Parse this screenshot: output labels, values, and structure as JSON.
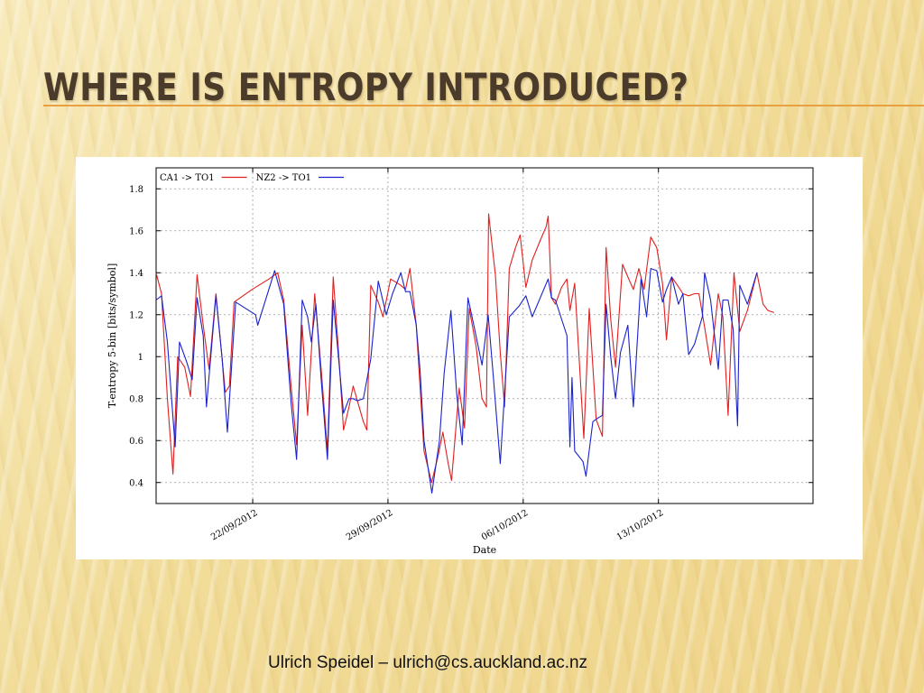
{
  "slide": {
    "title": "WHERE IS ENTROPY INTRODUCED?",
    "footer": "Ulrich Speidel – ulrich@cs.auckland.ac.nz",
    "title_color": "#4a3b2a",
    "accent_color": "#e8a040"
  },
  "chart_data": {
    "type": "line",
    "xlabel": "Date",
    "ylabel": "T-entropy 5-bin [bits/symbol]",
    "xlim": [
      "2012-09-17T00:00",
      "2012-10-21T00:00"
    ],
    "ylim": [
      0.3,
      1.9
    ],
    "yticks": [
      0.4,
      0.6,
      0.8,
      1,
      1.2,
      1.4,
      1.6,
      1.8
    ],
    "ytick_labels": [
      "0.4",
      "0.6",
      "0.8",
      "1",
      "1.2",
      "1.4",
      "1.6",
      "1.8"
    ],
    "xticks": [
      "2012-09-22",
      "2012-09-29",
      "2012-10-06",
      "2012-10-13"
    ],
    "xtick_labels": [
      "22/09/2012",
      "29/09/2012",
      "06/10/2012",
      "13/10/2012"
    ],
    "grid": true,
    "legend_position": "top-left",
    "series": [
      {
        "name": "CA1 -> TO1",
        "color": "#e02020",
        "points": [
          [
            "2012-09-17T00:00",
            1.4
          ],
          [
            "2012-09-17T06:45",
            1.3
          ],
          [
            "2012-09-17T14:00",
            0.8
          ],
          [
            "2012-09-17T21:00",
            0.44
          ],
          [
            "2012-09-18T02:50",
            1.0
          ],
          [
            "2012-09-18T11:30",
            0.95
          ],
          [
            "2012-09-18T18:40",
            0.81
          ],
          [
            "2012-09-19T02:50",
            1.39
          ],
          [
            "2012-09-19T10:30",
            1.15
          ],
          [
            "2012-09-19T17:50",
            0.94
          ],
          [
            "2012-09-20T02:20",
            1.3
          ],
          [
            "2012-09-20T14:00",
            0.83
          ],
          [
            "2012-09-20T19:00",
            0.86
          ],
          [
            "2012-09-21T00:50",
            1.26
          ],
          [
            "2012-09-21T23:10",
            1.32
          ],
          [
            "2012-09-22T20:10",
            1.37
          ],
          [
            "2012-09-23T07:00",
            1.4
          ],
          [
            "2012-09-23T14:30",
            1.27
          ],
          [
            "2012-09-23T23:40",
            0.86
          ],
          [
            "2012-09-24T06:30",
            0.58
          ],
          [
            "2012-09-24T13:30",
            1.15
          ],
          [
            "2012-09-24T20:10",
            0.72
          ],
          [
            "2012-09-25T05:00",
            1.3
          ],
          [
            "2012-09-25T13:30",
            0.92
          ],
          [
            "2012-09-25T20:50",
            0.55
          ],
          [
            "2012-09-26T04:00",
            1.38
          ],
          [
            "2012-09-26T11:10",
            0.99
          ],
          [
            "2012-09-26T16:50",
            0.65
          ],
          [
            "2012-09-26T23:40",
            0.76
          ],
          [
            "2012-09-27T04:50",
            0.86
          ],
          [
            "2012-09-27T09:20",
            0.8
          ],
          [
            "2012-09-27T17:30",
            0.69
          ],
          [
            "2012-09-27T21:50",
            0.65
          ],
          [
            "2012-09-28T02:40",
            1.34
          ],
          [
            "2012-09-28T12:00",
            1.26
          ],
          [
            "2012-09-28T17:50",
            1.19
          ],
          [
            "2012-09-29T03:20",
            1.37
          ],
          [
            "2012-09-29T16:00",
            1.34
          ],
          [
            "2012-09-29T21:50",
            1.32
          ],
          [
            "2012-09-30T03:20",
            1.42
          ],
          [
            "2012-09-30T11:10",
            1.15
          ],
          [
            "2012-09-30T20:50",
            0.55
          ],
          [
            "2012-10-01T06:10",
            0.4
          ],
          [
            "2012-10-01T14:30",
            0.53
          ],
          [
            "2012-10-01T20:10",
            0.64
          ],
          [
            "2012-10-02T02:20",
            0.5
          ],
          [
            "2012-10-02T07:00",
            0.41
          ],
          [
            "2012-10-02T16:30",
            0.85
          ],
          [
            "2012-10-02T23:10",
            0.66
          ],
          [
            "2012-10-03T05:00",
            1.23
          ],
          [
            "2012-10-03T13:30",
            1.05
          ],
          [
            "2012-10-03T20:50",
            0.8
          ],
          [
            "2012-10-04T02:20",
            0.76
          ],
          [
            "2012-10-04T05:00",
            1.68
          ],
          [
            "2012-10-04T13:30",
            1.39
          ],
          [
            "2012-10-04T19:30",
            1.02
          ],
          [
            "2012-10-05T00:50",
            0.76
          ],
          [
            "2012-10-05T06:45",
            1.42
          ],
          [
            "2012-10-05T14:30",
            1.52
          ],
          [
            "2012-10-05T20:10",
            1.58
          ],
          [
            "2012-10-06T03:20",
            1.33
          ],
          [
            "2012-10-06T11:10",
            1.46
          ],
          [
            "2012-10-06T21:50",
            1.56
          ],
          [
            "2012-10-07T04:30",
            1.62
          ],
          [
            "2012-10-07T07:00",
            1.67
          ],
          [
            "2012-10-07T11:10",
            1.28
          ],
          [
            "2012-10-07T16:00",
            1.25
          ],
          [
            "2012-10-07T23:40",
            1.33
          ],
          [
            "2012-10-08T06:20",
            1.37
          ],
          [
            "2012-10-08T10:00",
            1.22
          ],
          [
            "2012-10-08T16:00",
            1.35
          ],
          [
            "2012-10-08T21:50",
            0.97
          ],
          [
            "2012-10-09T03:20",
            0.61
          ],
          [
            "2012-10-09T10:00",
            1.23
          ],
          [
            "2012-10-09T18:40",
            0.7
          ],
          [
            "2012-10-10T02:20",
            0.62
          ],
          [
            "2012-10-10T07:00",
            1.52
          ],
          [
            "2012-10-10T12:40",
            1.18
          ],
          [
            "2012-10-10T18:40",
            0.95
          ],
          [
            "2012-10-11T03:20",
            1.44
          ],
          [
            "2012-10-11T10:00",
            1.38
          ],
          [
            "2012-10-11T16:50",
            1.32
          ],
          [
            "2012-10-11T23:40",
            1.42
          ],
          [
            "2012-10-12T06:10",
            1.32
          ],
          [
            "2012-10-12T14:30",
            1.57
          ],
          [
            "2012-10-12T21:50",
            1.52
          ],
          [
            "2012-10-13T05:00",
            1.35
          ],
          [
            "2012-10-13T10:00",
            1.08
          ],
          [
            "2012-10-13T16:30",
            1.38
          ],
          [
            "2012-10-13T23:40",
            1.34
          ],
          [
            "2012-10-14T06:20",
            1.3
          ],
          [
            "2012-10-14T13:30",
            1.29
          ],
          [
            "2012-10-14T20:50",
            1.3
          ],
          [
            "2012-10-15T02:20",
            1.3
          ],
          [
            "2012-10-15T09:20",
            1.14
          ],
          [
            "2012-10-15T16:50",
            0.96
          ],
          [
            "2012-10-16T02:20",
            1.3
          ],
          [
            "2012-10-16T08:00",
            1.19
          ],
          [
            "2012-10-16T14:30",
            0.72
          ],
          [
            "2012-10-16T21:50",
            1.4
          ],
          [
            "2012-10-17T05:00",
            1.12
          ],
          [
            "2012-10-17T14:30",
            1.22
          ],
          [
            "2012-10-18T02:20",
            1.4
          ],
          [
            "2012-10-18T10:00",
            1.25
          ],
          [
            "2012-10-18T16:00",
            1.22
          ],
          [
            "2012-10-18T23:40",
            1.21
          ]
        ]
      },
      {
        "name": "NZ2 -> TO1",
        "color": "#1a22cc",
        "points": [
          [
            "2012-09-17T00:00",
            1.27
          ],
          [
            "2012-09-17T06:45",
            1.29
          ],
          [
            "2012-09-17T14:00",
            1.07
          ],
          [
            "2012-09-17T23:40",
            0.57
          ],
          [
            "2012-09-18T05:00",
            1.07
          ],
          [
            "2012-09-18T13:30",
            0.98
          ],
          [
            "2012-09-18T20:50",
            0.89
          ],
          [
            "2012-09-19T02:50",
            1.28
          ],
          [
            "2012-09-19T10:30",
            1.1
          ],
          [
            "2012-09-19T14:30",
            0.76
          ],
          [
            "2012-09-20T02:20",
            1.29
          ],
          [
            "2012-09-20T10:00",
            0.99
          ],
          [
            "2012-09-20T16:30",
            0.64
          ],
          [
            "2012-09-21T02:50",
            1.26
          ],
          [
            "2012-09-22T03:30",
            1.2
          ],
          [
            "2012-09-22T06:10",
            1.15
          ],
          [
            "2012-09-23T03:20",
            1.41
          ],
          [
            "2012-09-23T14:30",
            1.25
          ],
          [
            "2012-09-23T23:40",
            0.78
          ],
          [
            "2012-09-24T06:30",
            0.51
          ],
          [
            "2012-09-24T13:30",
            1.27
          ],
          [
            "2012-09-24T20:10",
            1.19
          ],
          [
            "2012-09-25T00:50",
            1.07
          ],
          [
            "2012-09-25T06:30",
            1.25
          ],
          [
            "2012-09-25T13:30",
            0.87
          ],
          [
            "2012-09-25T20:50",
            0.51
          ],
          [
            "2012-09-26T04:00",
            1.27
          ],
          [
            "2012-09-26T11:10",
            0.97
          ],
          [
            "2012-09-26T16:50",
            0.73
          ],
          [
            "2012-09-26T23:40",
            0.8
          ],
          [
            "2012-09-27T04:50",
            0.8
          ],
          [
            "2012-09-27T10:00",
            0.79
          ],
          [
            "2012-09-27T17:30",
            0.8
          ],
          [
            "2012-09-28T02:40",
            0.99
          ],
          [
            "2012-09-28T12:00",
            1.36
          ],
          [
            "2012-09-28T21:50",
            1.2
          ],
          [
            "2012-09-29T05:40",
            1.3
          ],
          [
            "2012-09-29T16:00",
            1.4
          ],
          [
            "2012-09-29T21:50",
            1.31
          ],
          [
            "2012-09-30T03:20",
            1.31
          ],
          [
            "2012-09-30T11:10",
            1.15
          ],
          [
            "2012-09-30T16:00",
            0.93
          ],
          [
            "2012-09-30T20:50",
            0.6
          ],
          [
            "2012-10-01T06:30",
            0.35
          ],
          [
            "2012-10-01T16:00",
            0.6
          ],
          [
            "2012-10-01T21:50",
            0.92
          ],
          [
            "2012-10-02T06:10",
            1.22
          ],
          [
            "2012-10-02T13:30",
            0.82
          ],
          [
            "2012-10-02T20:10",
            0.58
          ],
          [
            "2012-10-03T03:20",
            1.28
          ],
          [
            "2012-10-03T11:10",
            1.14
          ],
          [
            "2012-10-03T20:50",
            0.96
          ],
          [
            "2012-10-04T04:30",
            1.2
          ],
          [
            "2012-10-04T11:10",
            0.89
          ],
          [
            "2012-10-04T19:30",
            0.49
          ],
          [
            "2012-10-05T06:45",
            1.19
          ],
          [
            "2012-10-05T18:40",
            1.24
          ],
          [
            "2012-10-06T03:20",
            1.29
          ],
          [
            "2012-10-06T11:10",
            1.19
          ],
          [
            "2012-10-07T07:00",
            1.37
          ],
          [
            "2012-10-07T11:10",
            1.28
          ],
          [
            "2012-10-07T16:00",
            1.27
          ],
          [
            "2012-10-08T06:20",
            1.1
          ],
          [
            "2012-10-08T10:00",
            0.57
          ],
          [
            "2012-10-08T12:40",
            0.9
          ],
          [
            "2012-10-08T16:00",
            0.55
          ],
          [
            "2012-10-09T02:20",
            0.5
          ],
          [
            "2012-10-09T06:00",
            0.43
          ],
          [
            "2012-10-09T14:30",
            0.69
          ],
          [
            "2012-10-09T21:50",
            0.71
          ],
          [
            "2012-10-10T02:20",
            0.72
          ],
          [
            "2012-10-10T07:00",
            1.25
          ],
          [
            "2012-10-10T12:40",
            1.0
          ],
          [
            "2012-10-10T18:40",
            0.8
          ],
          [
            "2012-10-11T00:50",
            1.02
          ],
          [
            "2012-10-11T10:00",
            1.15
          ],
          [
            "2012-10-11T16:50",
            0.76
          ],
          [
            "2012-10-12T02:20",
            1.37
          ],
          [
            "2012-10-12T09:20",
            1.19
          ],
          [
            "2012-10-12T14:30",
            1.42
          ],
          [
            "2012-10-12T21:50",
            1.41
          ],
          [
            "2012-10-13T05:00",
            1.26
          ],
          [
            "2012-10-13T10:00",
            1.32
          ],
          [
            "2012-10-13T16:30",
            1.38
          ],
          [
            "2012-10-14T00:50",
            1.25
          ],
          [
            "2012-10-14T06:20",
            1.3
          ],
          [
            "2012-10-14T13:30",
            1.01
          ],
          [
            "2012-10-14T20:50",
            1.06
          ],
          [
            "2012-10-15T06:30",
            1.19
          ],
          [
            "2012-10-15T09:20",
            1.4
          ],
          [
            "2012-10-15T16:50",
            1.27
          ],
          [
            "2012-10-16T02:20",
            0.94
          ],
          [
            "2012-10-16T08:00",
            1.27
          ],
          [
            "2012-10-16T14:30",
            1.27
          ],
          [
            "2012-10-16T20:50",
            1.13
          ],
          [
            "2012-10-17T02:20",
            0.67
          ],
          [
            "2012-10-17T05:00",
            1.34
          ],
          [
            "2012-10-17T14:30",
            1.25
          ],
          [
            "2012-10-18T02:20",
            1.4
          ]
        ]
      }
    ]
  }
}
